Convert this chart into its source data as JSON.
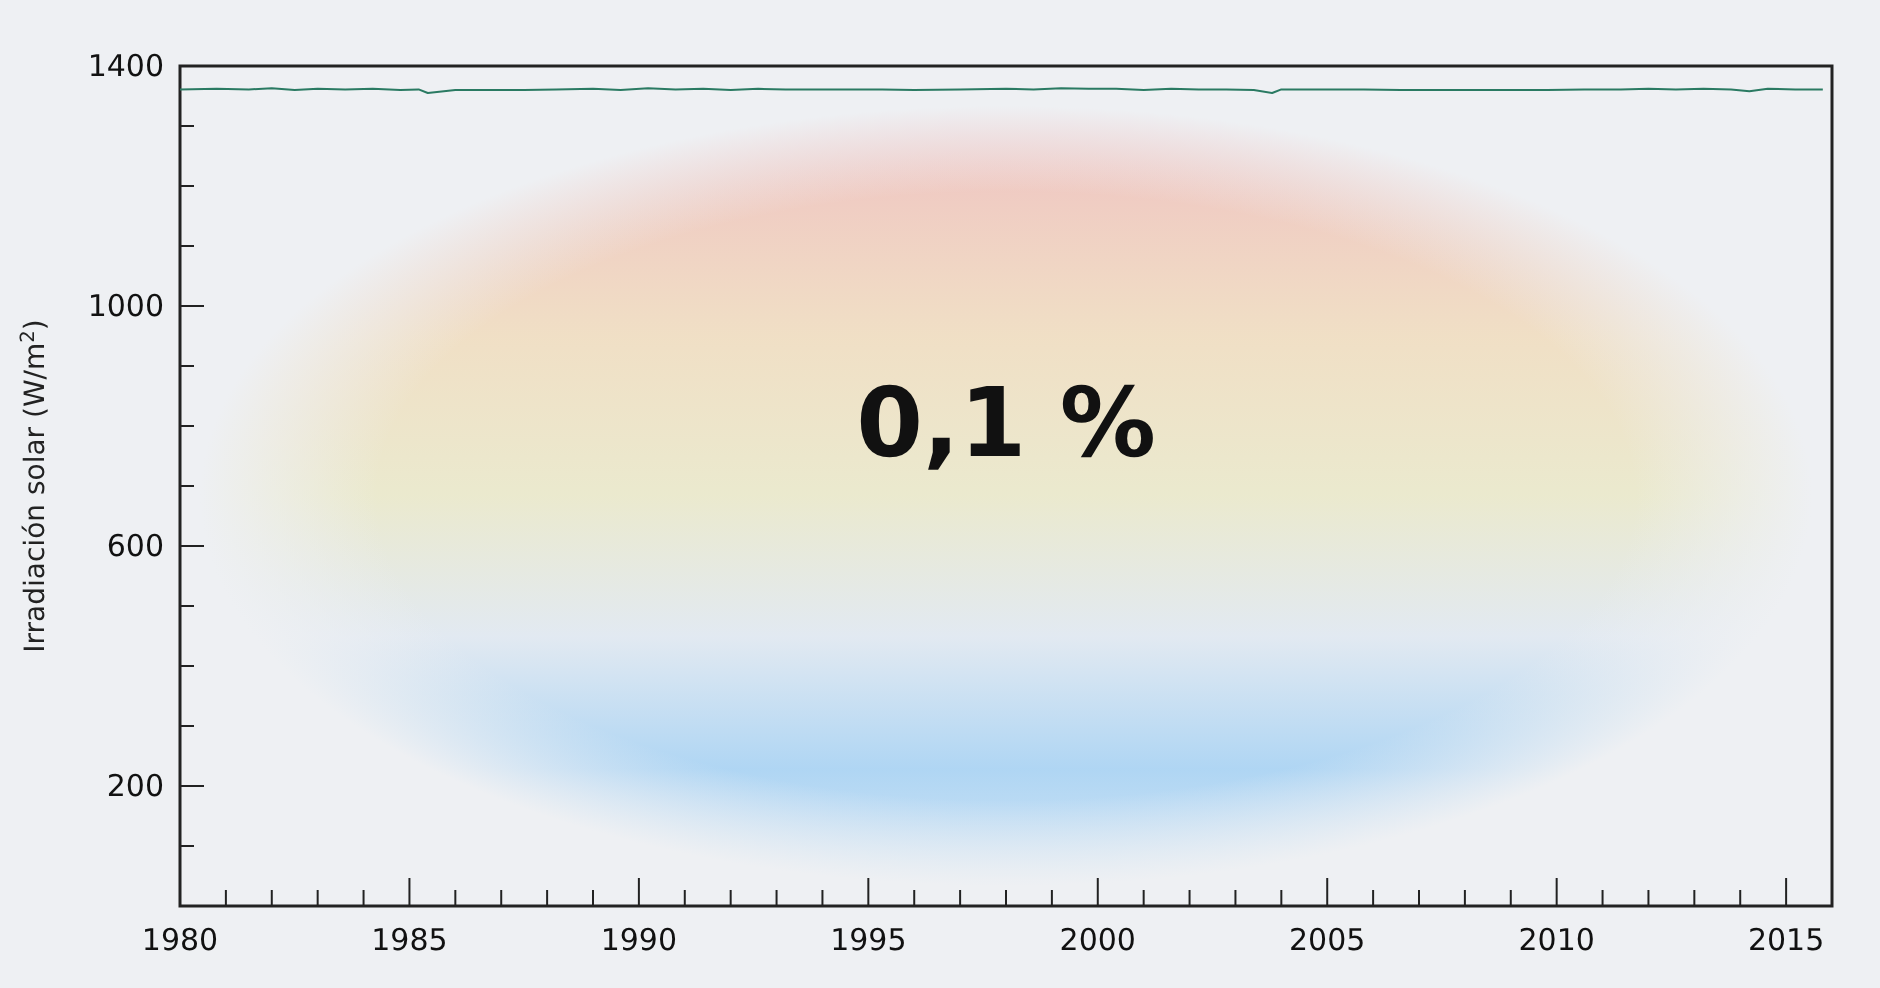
{
  "chart_data": {
    "type": "line",
    "xlabel": null,
    "ylabel": "Irradiación solar (W/m$^{2}$)",
    "annotations": [
      "0,1 %"
    ],
    "xlim": [
      1980,
      2016
    ],
    "ylim": [
      0,
      1400
    ],
    "xticks": [
      1980,
      {
        "value": 1981,
        "label": null
      },
      {
        "value": 1982,
        "label": null
      },
      {
        "value": 1983,
        "label": null
      },
      {
        "value": 1984,
        "label": null
      },
      1985,
      {
        "value": 1986,
        "label": null
      },
      {
        "value": 1987,
        "label": null
      },
      {
        "value": 1988,
        "label": null
      },
      {
        "value": 1989,
        "label": null
      },
      1990,
      {
        "value": 1991,
        "label": null
      },
      {
        "value": 1992,
        "label": null
      },
      {
        "value": 1993,
        "label": null
      },
      {
        "value": 1994,
        "label": null
      },
      1995,
      {
        "value": 1996,
        "label": null
      },
      {
        "value": 1997,
        "label": null
      },
      {
        "value": 1998,
        "label": null
      },
      {
        "value": 1999,
        "label": null
      },
      2000,
      {
        "value": 2001,
        "label": null
      },
      {
        "value": 2002,
        "label": null
      },
      {
        "value": 2003,
        "label": null
      },
      {
        "value": 2004,
        "label": null
      },
      2005,
      {
        "value": 2006,
        "label": null
      },
      {
        "value": 2007,
        "label": null
      },
      {
        "value": 2008,
        "label": null
      },
      {
        "value": 2009,
        "label": null
      },
      2010,
      {
        "value": 2011,
        "label": null
      },
      {
        "value": 2012,
        "label": null
      },
      {
        "value": 2013,
        "label": null
      },
      {
        "value": 2014,
        "label": null
      },
      2015
    ],
    "yticks": [
      {
        "value": 100,
        "label": null
      },
      200,
      {
        "value": 300,
        "label": null
      },
      {
        "value": 400,
        "label": null
      },
      {
        "value": 500,
        "label": null
      },
      600,
      {
        "value": 700,
        "label": null
      },
      {
        "value": 800,
        "label": null
      },
      {
        "value": 900,
        "label": null
      },
      1000,
      {
        "value": 1100,
        "label": null
      },
      {
        "value": 1200,
        "label": null
      },
      {
        "value": 1300,
        "label": null
      },
      1400
    ],
    "grid": false,
    "marker": "none",
    "line_style": "solid",
    "series": [
      {
        "color": "#2a7a62",
        "x": [
          1980.0,
          1980.8,
          1981.5,
          1982.0,
          1982.5,
          1983.0,
          1983.6,
          1984.2,
          1984.8,
          1985.2,
          1985.4,
          1986.0,
          1986.8,
          1987.5,
          1988.2,
          1989.0,
          1989.6,
          1990.2,
          1990.8,
          1991.4,
          1992.0,
          1992.6,
          1993.2,
          1993.8,
          1994.5,
          1995.3,
          1996.0,
          1997.0,
          1998.0,
          1998.6,
          1999.2,
          1999.8,
          2000.4,
          2001.0,
          2001.6,
          2002.2,
          2002.8,
          2003.4,
          2003.8,
          2004.0,
          2004.4,
          2005.0,
          2005.8,
          2006.6,
          2007.4,
          2008.2,
          2009.0,
          2009.8,
          2010.6,
          2011.4,
          2012.0,
          2012.6,
          2013.2,
          2013.8,
          2014.2,
          2014.6,
          2015.2,
          2015.8
        ],
        "values": [
          1361,
          1362,
          1361,
          1363,
          1360,
          1362,
          1361,
          1362,
          1360,
          1361,
          1355,
          1360,
          1360,
          1360,
          1361,
          1362,
          1360,
          1363,
          1361,
          1362,
          1360,
          1362,
          1361,
          1361,
          1361,
          1361,
          1360,
          1361,
          1362,
          1361,
          1363,
          1362,
          1362,
          1360,
          1362,
          1361,
          1361,
          1360,
          1355,
          1361,
          1361,
          1361,
          1361,
          1360,
          1360,
          1360,
          1360,
          1360,
          1361,
          1361,
          1362,
          1361,
          1362,
          1361,
          1358,
          1362,
          1361,
          1361
        ]
      }
    ]
  }
}
